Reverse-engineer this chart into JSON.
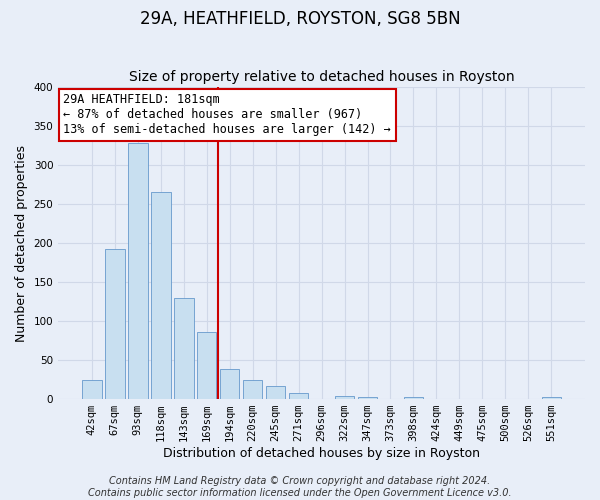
{
  "title": "29A, HEATHFIELD, ROYSTON, SG8 5BN",
  "subtitle": "Size of property relative to detached houses in Royston",
  "xlabel": "Distribution of detached houses by size in Royston",
  "ylabel": "Number of detached properties",
  "bar_labels": [
    "42sqm",
    "67sqm",
    "93sqm",
    "118sqm",
    "143sqm",
    "169sqm",
    "194sqm",
    "220sqm",
    "245sqm",
    "271sqm",
    "296sqm",
    "322sqm",
    "347sqm",
    "373sqm",
    "398sqm",
    "424sqm",
    "449sqm",
    "475sqm",
    "500sqm",
    "526sqm",
    "551sqm"
  ],
  "bar_values": [
    25,
    193,
    328,
    266,
    130,
    86,
    38,
    25,
    17,
    8,
    0,
    4,
    3,
    0,
    3,
    0,
    0,
    0,
    0,
    0,
    3
  ],
  "bar_color": "#c8dff0",
  "bar_edge_color": "#6699cc",
  "vline_index": 6,
  "vline_color": "#cc0000",
  "ylim": [
    0,
    400
  ],
  "yticks": [
    0,
    50,
    100,
    150,
    200,
    250,
    300,
    350,
    400
  ],
  "annotation_title": "29A HEATHFIELD: 181sqm",
  "annotation_line1": "← 87% of detached houses are smaller (967)",
  "annotation_line2": "13% of semi-detached houses are larger (142) →",
  "annotation_box_color": "#cc0000",
  "footer_line1": "Contains HM Land Registry data © Crown copyright and database right 2024.",
  "footer_line2": "Contains public sector information licensed under the Open Government Licence v3.0.",
  "bg_color": "#e8eef8",
  "grid_color": "#d0d8e8",
  "title_fontsize": 12,
  "subtitle_fontsize": 10,
  "axis_label_fontsize": 9,
  "tick_fontsize": 7.5,
  "footer_fontsize": 7
}
